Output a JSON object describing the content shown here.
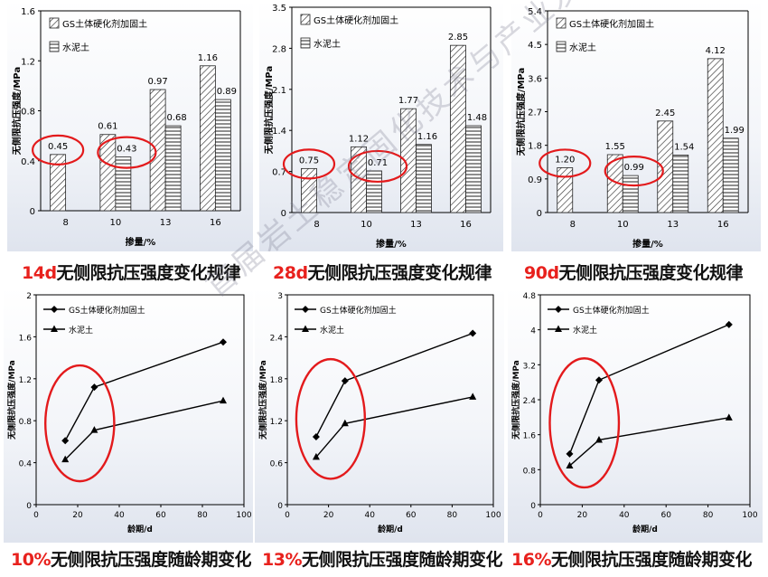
{
  "colors": {
    "caption_prefix": "#e8211d",
    "highlight_ellipse": "#e31a1c",
    "panel_bg_top": "#ffffff",
    "line": "#000000"
  },
  "captions": [
    {
      "prefix": "14d",
      "text": "无侧限抗压强度变化规律"
    },
    {
      "prefix": "28d",
      "text": "无侧限抗压强度变化规律"
    },
    {
      "prefix": "90d",
      "text": "无侧限抗压强度变化规律"
    },
    {
      "prefix": "10%",
      "text": "无侧限抗压强度随龄期变化"
    },
    {
      "prefix": "13%",
      "text": "无侧限抗压强度随龄期变化"
    },
    {
      "prefix": "16%",
      "text": "无侧限抗压强度随龄期变化"
    }
  ],
  "chart_data": [
    {
      "type": "bar",
      "title": "",
      "xlabel": "掺量/%",
      "ylabel": "无侧限抗压强度/MPa",
      "categories": [
        "8",
        "10",
        "13",
        "16"
      ],
      "ylim": [
        0,
        1.6
      ],
      "yticks": [
        "0",
        "0.4",
        "0.8",
        "1.2",
        "1.6"
      ],
      "series": [
        {
          "name": "GS土体硬化剂加固土",
          "values": [
            0.45,
            0.61,
            0.97,
            1.16
          ],
          "labels": [
            "0.45",
            "0.61",
            "0.97",
            "1.16"
          ],
          "pattern": "diag"
        },
        {
          "name": "水泥土",
          "values": [
            null,
            0.43,
            0.68,
            0.89
          ],
          "labels": [
            "",
            "0.43",
            "0.68",
            "0.89"
          ],
          "pattern": "horiz"
        }
      ],
      "legend": "top-left",
      "grid": false
    },
    {
      "type": "bar",
      "title": "",
      "xlabel": "掺量/%",
      "ylabel": "无侧限抗压强度/MPa",
      "categories": [
        "8",
        "10",
        "13",
        "16"
      ],
      "ylim": [
        0,
        3.5
      ],
      "yticks": [
        "0",
        "0.7",
        "1.4",
        "2.1",
        "2.8",
        "3.5"
      ],
      "series": [
        {
          "name": "GS土体硬化剂加固土",
          "values": [
            0.75,
            1.12,
            1.77,
            2.85
          ],
          "labels": [
            "0.75",
            "1.12",
            "1.77",
            "2.85"
          ],
          "pattern": "diag"
        },
        {
          "name": "水泥土",
          "values": [
            null,
            0.71,
            1.16,
            1.48
          ],
          "labels": [
            "",
            "0.71",
            "1.16",
            "1.48"
          ],
          "pattern": "horiz"
        }
      ],
      "legend": "top-left",
      "grid": false
    },
    {
      "type": "bar",
      "title": "",
      "xlabel": "掺量/%",
      "ylabel": "无侧限抗压强度/MPa",
      "categories": [
        "8",
        "10",
        "13",
        "16"
      ],
      "ylim": [
        0,
        5.4
      ],
      "yticks": [
        "0",
        "0.9",
        "1.8",
        "2.7",
        "3.6",
        "4.5",
        "5.4"
      ],
      "series": [
        {
          "name": "GS土体硬化剂加固土",
          "values": [
            1.2,
            1.55,
            2.45,
            4.12
          ],
          "labels": [
            "1.20",
            "1.55",
            "2.45",
            "4.12"
          ],
          "pattern": "diag"
        },
        {
          "name": "水泥土",
          "values": [
            null,
            0.99,
            1.54,
            1.99
          ],
          "labels": [
            "",
            "0.99",
            "1.54",
            "1.99"
          ],
          "pattern": "horiz"
        }
      ],
      "legend": "top-left",
      "grid": false
    },
    {
      "type": "line",
      "title": "",
      "xlabel": "龄期/d",
      "ylabel": "无侧限抗压强度/MPa",
      "xlim": [
        0,
        100
      ],
      "xticks": [
        "0",
        "20",
        "40",
        "60",
        "80",
        "100"
      ],
      "ylim": [
        0,
        2
      ],
      "yticks": [
        "0",
        "0.4",
        "0.8",
        "1.2",
        "1.6",
        "2"
      ],
      "x": [
        14,
        28,
        90
      ],
      "series": [
        {
          "name": "GS土体硬化剂加固土",
          "values": [
            0.61,
            1.12,
            1.55
          ],
          "marker": "diamond"
        },
        {
          "name": "水泥土",
          "values": [
            0.43,
            0.71,
            0.99
          ],
          "marker": "triangle"
        }
      ],
      "legend": "top-left",
      "grid": false
    },
    {
      "type": "line",
      "title": "",
      "xlabel": "龄期/d",
      "ylabel": "无侧限抗压强度/MPa",
      "xlim": [
        0,
        100
      ],
      "xticks": [
        "0",
        "20",
        "40",
        "60",
        "80",
        "100"
      ],
      "ylim": [
        0,
        3
      ],
      "yticks": [
        "0",
        "0.6",
        "1.2",
        "1.8",
        "2.4",
        "3"
      ],
      "x": [
        14,
        28,
        90
      ],
      "series": [
        {
          "name": "GS土体硬化剂加固土",
          "values": [
            0.97,
            1.77,
            2.45
          ],
          "marker": "diamond"
        },
        {
          "name": "水泥土",
          "values": [
            0.68,
            1.16,
            1.54
          ],
          "marker": "triangle"
        }
      ],
      "legend": "top-left",
      "grid": false
    },
    {
      "type": "line",
      "title": "",
      "xlabel": "龄期/d",
      "ylabel": "无侧限抗压强度/MPa",
      "xlim": [
        0,
        100
      ],
      "xticks": [
        "0",
        "20",
        "40",
        "60",
        "80",
        "100"
      ],
      "ylim": [
        0,
        4.8
      ],
      "yticks": [
        "0",
        "0.8",
        "1.6",
        "2.4",
        "3.2",
        "4",
        "4.8"
      ],
      "x": [
        14,
        28,
        90
      ],
      "series": [
        {
          "name": "GS土体硬化剂加固土",
          "values": [
            1.16,
            2.85,
            4.12
          ],
          "marker": "diamond"
        },
        {
          "name": "水泥土",
          "values": [
            0.89,
            1.48,
            1.99
          ],
          "marker": "triangle"
        }
      ],
      "legend": "top-left",
      "grid": false
    }
  ],
  "watermark": "首届岩土稳定固化技术与产业发展论坛"
}
